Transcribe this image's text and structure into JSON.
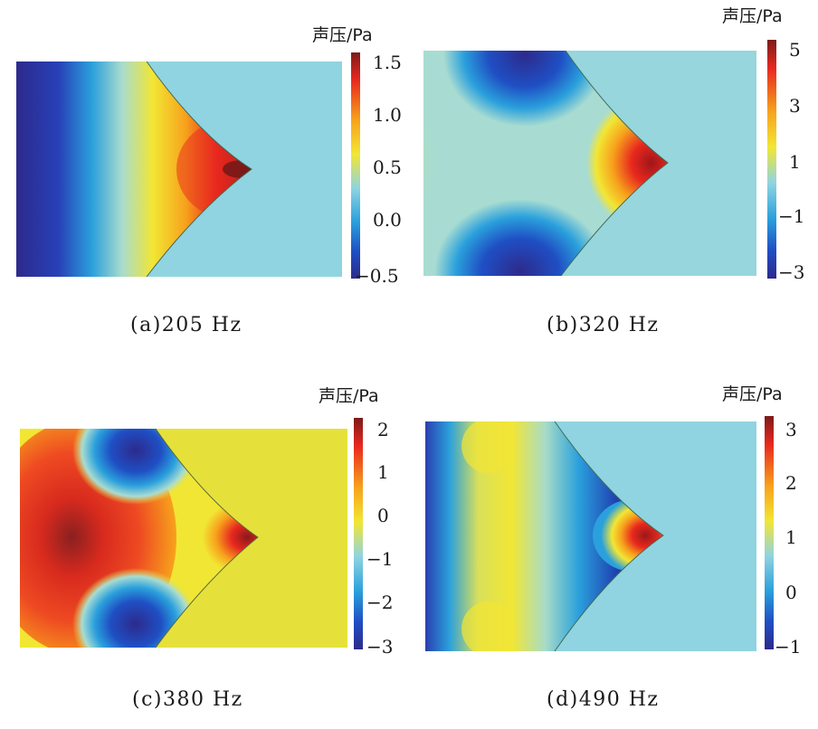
{
  "panels": [
    {
      "caption": "(a)205 Hz",
      "unit": "声压/Pa",
      "ticks": [
        "1.5",
        "1.0",
        "0.5",
        "0.0",
        "−0.5"
      ],
      "right_region_color": "#8fd4e0"
    },
    {
      "caption": "(b)320 Hz",
      "unit": "声压/Pa",
      "ticks": [
        "5",
        "3",
        "1",
        "−1",
        "−3"
      ],
      "right_region_color": "#96d6dc"
    },
    {
      "caption": "(c)380 Hz",
      "unit": "声压/Pa",
      "ticks": [
        "2",
        "1",
        "0",
        "−1",
        "−2",
        "−3"
      ],
      "right_region_color": "#e6e13a"
    },
    {
      "caption": "(d)490 Hz",
      "unit": "声压/Pa",
      "ticks": [
        "3",
        "2",
        "1",
        "0",
        "−1"
      ],
      "right_region_color": "#8fd4e0"
    }
  ],
  "colors": {
    "colormap": [
      "#2d2a8c",
      "#1f4fc4",
      "#2aa0dc",
      "#8fd4e0",
      "#f2e634",
      "#f7a21c",
      "#e8281e",
      "#7d1a1a"
    ]
  }
}
